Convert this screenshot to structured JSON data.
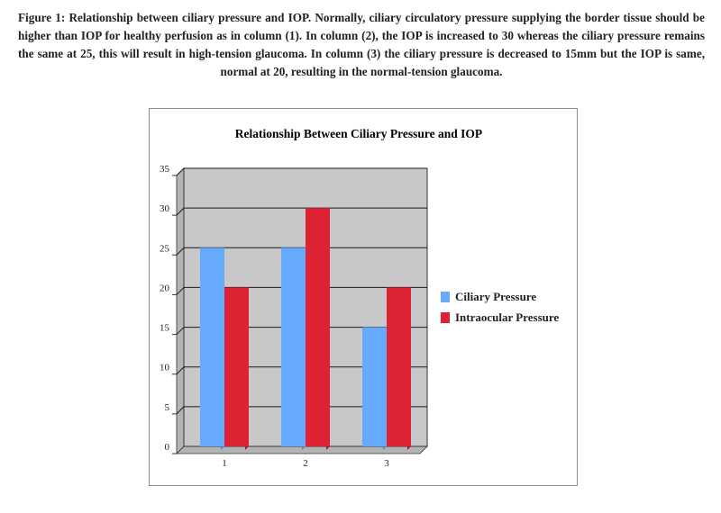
{
  "caption": "Figure 1: Relationship between ciliary pressure and IOP. Normally, ciliary circulatory pressure supplying the border tissue should be higher than IOP for healthy perfusion as in column (1). In column (2), the IOP is increased to 30 whereas the ciliary pressure remains the same at 25, this will result in high-tension glaucoma. In column (3) the ciliary pressure is decreased to 15mm but the IOP is same, normal at 20, resulting in the normal-tension glaucoma.",
  "chart_data": {
    "type": "bar",
    "title": "Relationship Between Ciliary Pressure and IOP",
    "categories": [
      "1",
      "2",
      "3"
    ],
    "series": [
      {
        "name": "Ciliary Pressure",
        "values": [
          25,
          25,
          15
        ],
        "color": "#66aaff"
      },
      {
        "name": "Intraocular Pressure",
        "values": [
          20,
          30,
          20
        ],
        "color": "#dd2233"
      }
    ],
    "ylim": [
      0,
      35
    ],
    "yticks": [
      0,
      5,
      10,
      15,
      20,
      25,
      30,
      35
    ],
    "grid": true,
    "plot_background": "#c8c8c8",
    "legend": "right"
  }
}
